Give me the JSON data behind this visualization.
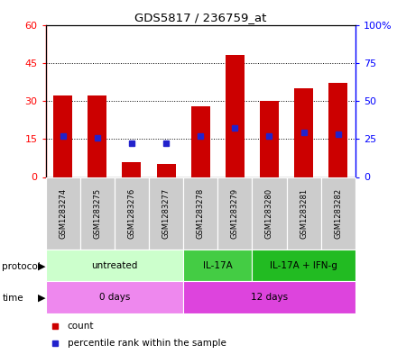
{
  "title": "GDS5817 / 236759_at",
  "samples": [
    "GSM1283274",
    "GSM1283275",
    "GSM1283276",
    "GSM1283277",
    "GSM1283278",
    "GSM1283279",
    "GSM1283280",
    "GSM1283281",
    "GSM1283282"
  ],
  "counts": [
    32,
    32,
    6,
    5,
    28,
    48,
    30,
    35,
    37
  ],
  "percentiles": [
    27,
    26,
    22,
    22,
    27,
    32,
    27,
    29,
    28
  ],
  "left_ylim": [
    0,
    60
  ],
  "right_ylim": [
    0,
    100
  ],
  "left_yticks": [
    0,
    15,
    30,
    45,
    60
  ],
  "right_yticks": [
    0,
    25,
    50,
    75,
    100
  ],
  "right_yticklabels": [
    "0",
    "25",
    "50",
    "75",
    "100%"
  ],
  "bar_color": "#cc0000",
  "dot_color": "#2222cc",
  "bar_width": 0.55,
  "protocols": [
    {
      "label": "untreated",
      "start": 0,
      "end": 4,
      "color": "#ccffcc"
    },
    {
      "label": "IL-17A",
      "start": 4,
      "end": 6,
      "color": "#44cc44"
    },
    {
      "label": "IL-17A + IFN-g",
      "start": 6,
      "end": 9,
      "color": "#22bb22"
    }
  ],
  "times": [
    {
      "label": "0 days",
      "start": 0,
      "end": 4,
      "color": "#ee88ee"
    },
    {
      "label": "12 days",
      "start": 4,
      "end": 9,
      "color": "#dd44dd"
    }
  ],
  "legend_count_color": "#cc0000",
  "legend_pct_color": "#2222cc",
  "bg_color": "#ffffff",
  "plot_bg": "#ffffff",
  "sample_bg": "#cccccc"
}
